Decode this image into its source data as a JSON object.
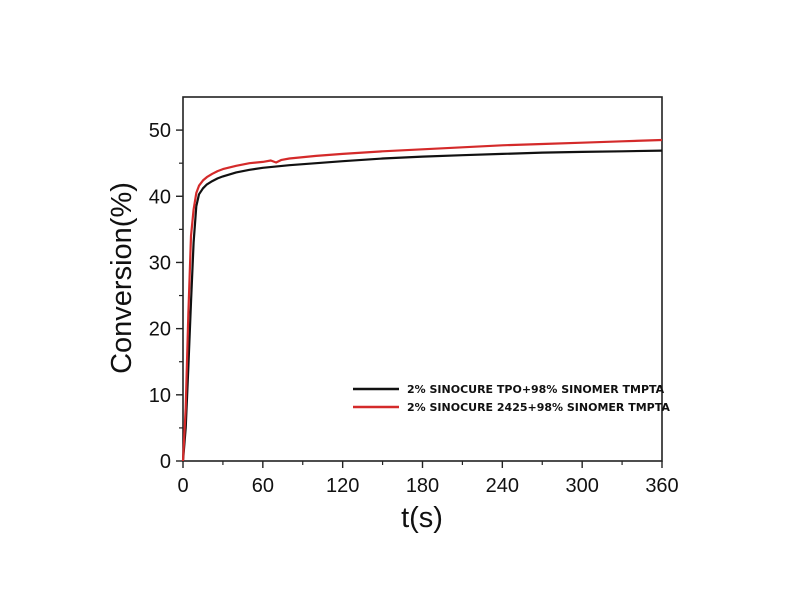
{
  "chart_data": {
    "type": "line",
    "title": "",
    "xlabel": "t(s)",
    "ylabel": "Conversion(%)",
    "xlim": [
      0,
      360
    ],
    "ylim": [
      0,
      55
    ],
    "xticks": [
      0,
      60,
      120,
      180,
      240,
      300,
      360
    ],
    "yticks": [
      0,
      10,
      20,
      30,
      40,
      50
    ],
    "grid": false,
    "legend_position": "bottom-right",
    "series": [
      {
        "name": "2% SINOCURE TPO+98% SINOMER TMPTA",
        "color": "#111111",
        "x": [
          0,
          2,
          4,
          6,
          8,
          10,
          12,
          15,
          18,
          22,
          26,
          30,
          40,
          50,
          60,
          80,
          100,
          120,
          150,
          180,
          210,
          240,
          270,
          300,
          330,
          360
        ],
        "y": [
          0,
          5,
          14,
          24,
          33,
          38.5,
          40.3,
          41.2,
          41.8,
          42.3,
          42.7,
          43.0,
          43.6,
          44.0,
          44.3,
          44.7,
          45.0,
          45.3,
          45.7,
          46.0,
          46.2,
          46.4,
          46.6,
          46.7,
          46.8,
          46.9
        ]
      },
      {
        "name": "2% SINOCURE 2425+98% SINOMER TMPTA",
        "color": "#d42a2a",
        "x": [
          0,
          2,
          4,
          6,
          8,
          10,
          12,
          15,
          18,
          22,
          26,
          30,
          40,
          50,
          60,
          66,
          70,
          74,
          80,
          100,
          120,
          150,
          180,
          210,
          240,
          270,
          300,
          330,
          360
        ],
        "y": [
          0,
          8,
          22,
          34,
          38,
          40.5,
          41.6,
          42.4,
          42.9,
          43.4,
          43.8,
          44.1,
          44.6,
          45.0,
          45.2,
          45.4,
          45.1,
          45.5,
          45.7,
          46.1,
          46.4,
          46.8,
          47.1,
          47.4,
          47.7,
          47.9,
          48.1,
          48.3,
          48.5
        ]
      }
    ]
  }
}
